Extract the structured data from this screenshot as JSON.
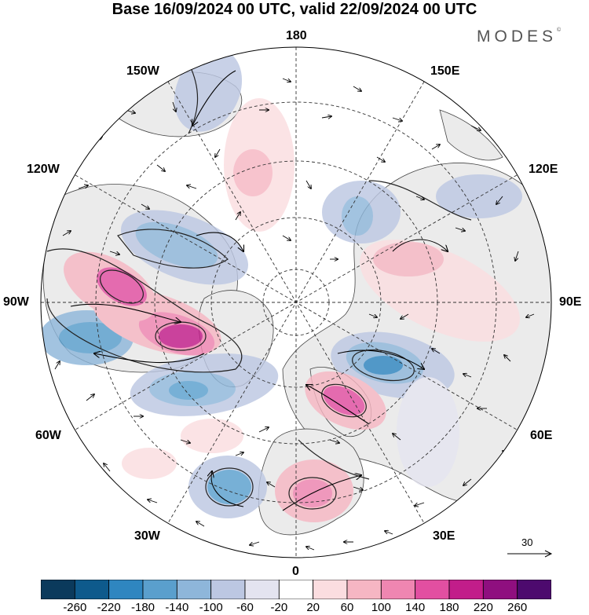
{
  "title": "Base 16/09/2024 00 UTC, valid 22/09/2024 00 UTC",
  "brand": "MODES",
  "brand_mark": "©",
  "longitude_labels": {
    "top": "180",
    "bottom": "0",
    "left": "90W",
    "right": "90E",
    "upper_left": "150W",
    "upper_right": "150E",
    "left_upper": "120W",
    "right_upper": "120E",
    "left_lower": "60W",
    "right_lower": "60E",
    "lower_left": "30W",
    "lower_right": "30E"
  },
  "vector_scale": {
    "label": "30"
  },
  "colorbar": {
    "colors": [
      "#0b3a5c",
      "#0e5a8c",
      "#2f86c0",
      "#5a9fcd",
      "#8eb6da",
      "#bcc7e2",
      "#e4e4f0",
      "#ffffff",
      "#fbdde0",
      "#f6b6c3",
      "#ef86b1",
      "#e24fa1",
      "#c21d8a",
      "#8f0f7f",
      "#4d0a6e"
    ],
    "labels": [
      "-260",
      "-220",
      "-180",
      "-140",
      "-100",
      "-60",
      "-20",
      "20",
      "60",
      "100",
      "140",
      "180",
      "220",
      "260"
    ]
  },
  "colors": {
    "land": "#ebebeb",
    "coastline": "#444444",
    "grid": "#333333"
  },
  "anomaly_centers": [
    {
      "name": "canada-north-positive",
      "sign": "positive",
      "max_level": "260"
    },
    {
      "name": "alaska-positive",
      "sign": "positive",
      "max_level": "180"
    },
    {
      "name": "labrador-negative",
      "sign": "negative",
      "max_level": "-140"
    },
    {
      "name": "north-atlantic-negative",
      "sign": "negative",
      "max_level": "-180"
    },
    {
      "name": "mid-atlantic-negative",
      "sign": "negative",
      "max_level": "-140"
    },
    {
      "name": "barents-scandinavia-positive",
      "sign": "positive",
      "max_level": "220"
    },
    {
      "name": "europe-positive",
      "sign": "positive",
      "max_level": "180"
    },
    {
      "name": "west-siberia-negative",
      "sign": "negative",
      "max_level": "-180"
    },
    {
      "name": "central-siberia-positive",
      "sign": "positive",
      "max_level": "140"
    },
    {
      "name": "east-siberia-negative",
      "sign": "negative",
      "max_level": "-100"
    },
    {
      "name": "north-pacific-positive",
      "sign": "positive",
      "max_level": "140"
    },
    {
      "name": "bering-negative",
      "sign": "negative",
      "max_level": "-100"
    }
  ]
}
